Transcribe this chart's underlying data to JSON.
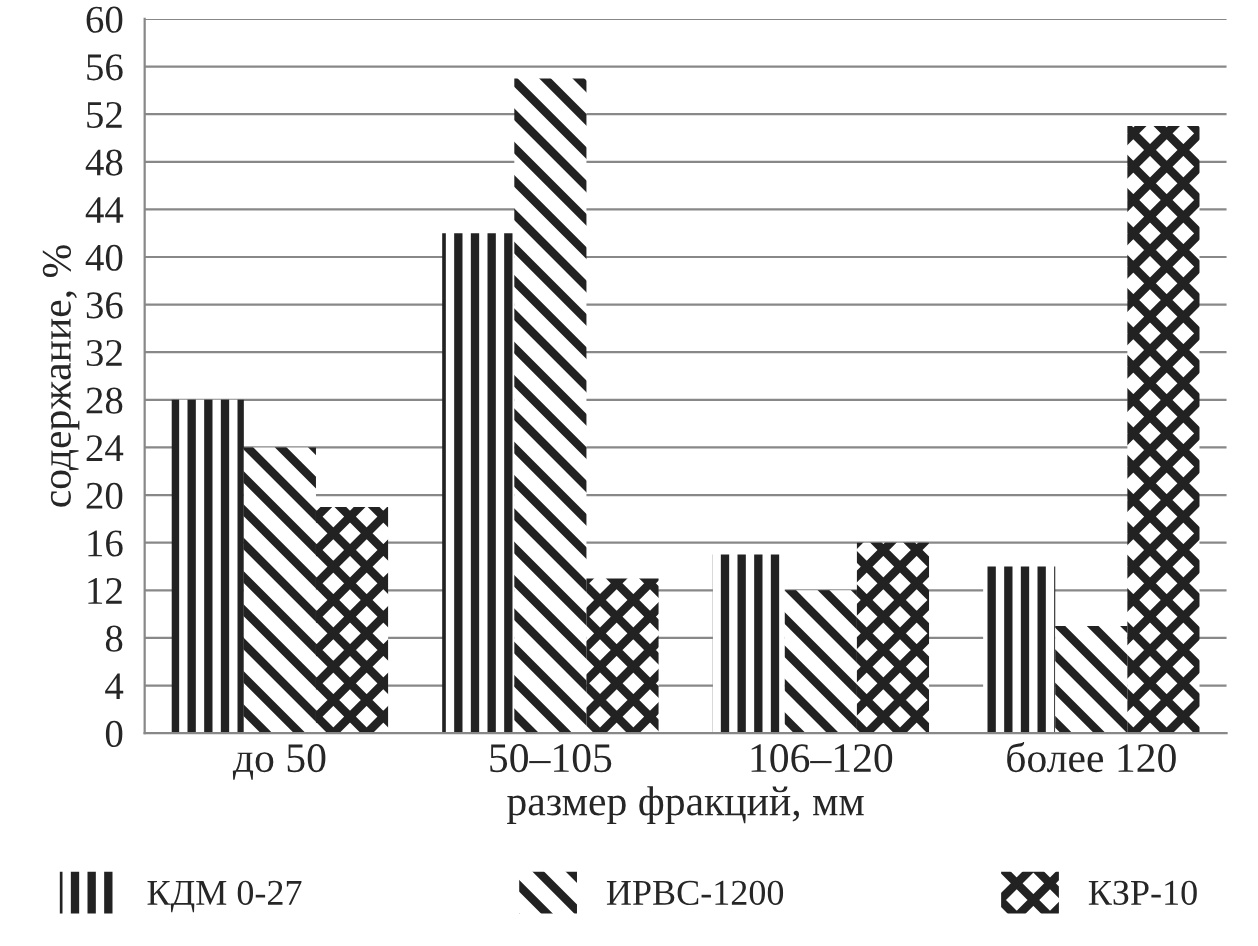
{
  "chart_data": {
    "type": "bar",
    "xlabel": "размер фракций, мм",
    "ylabel": "содержание, %",
    "categories": [
      "до 50",
      "50–105",
      "106–120",
      "более 120"
    ],
    "series": [
      {
        "name": "КДМ 0-27",
        "color": "#222222",
        "values": [
          28,
          42,
          15,
          14
        ]
      },
      {
        "name": "ИРВС-1200",
        "color": "#222222",
        "values": [
          24,
          55,
          12,
          9
        ]
      },
      {
        "name": "КЗР-10",
        "color": "#222222",
        "values": [
          19,
          13,
          16,
          51
        ]
      }
    ],
    "ylim": [
      0,
      60
    ],
    "yticks": [
      0,
      4,
      8,
      12,
      16,
      20,
      24,
      28,
      32,
      36,
      40,
      44,
      48,
      52,
      56,
      60
    ],
    "grid": "y",
    "legend": "bottom"
  }
}
